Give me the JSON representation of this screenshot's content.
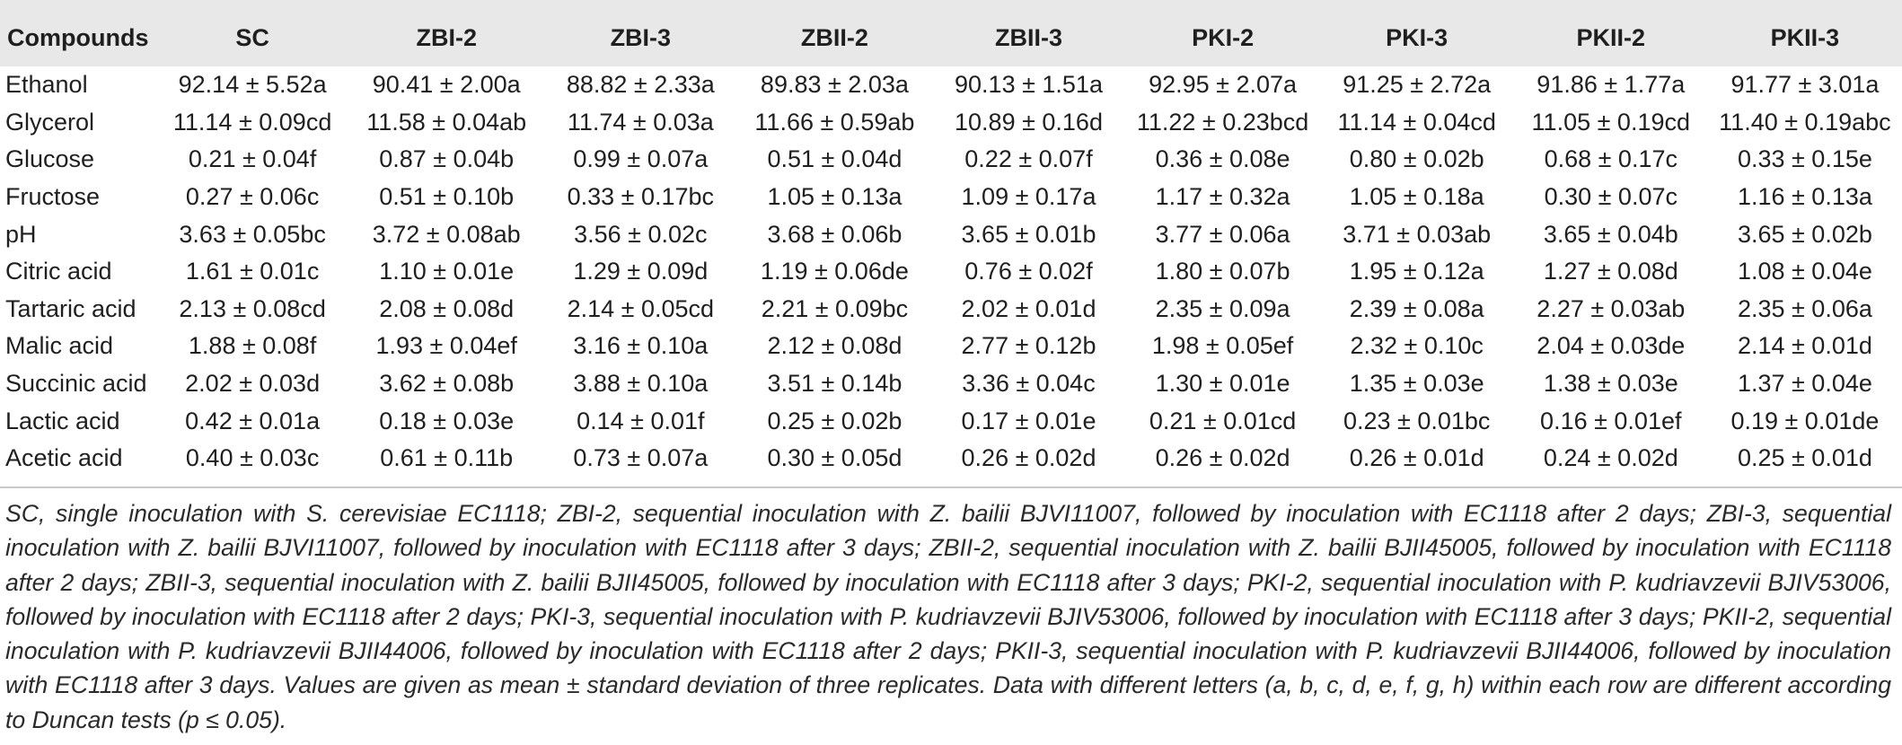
{
  "table": {
    "headers": [
      "Compounds",
      "SC",
      "ZBI-2",
      "ZBI-3",
      "ZBII-2",
      "ZBII-3",
      "PKI-2",
      "PKI-3",
      "PKII-2",
      "PKII-3"
    ],
    "rows": [
      {
        "name": "Ethanol",
        "cells": [
          "92.14 ± 5.52a",
          "90.41 ± 2.00a",
          "88.82 ± 2.33a",
          "89.83 ± 2.03a",
          "90.13 ± 1.51a",
          "92.95 ± 2.07a",
          "91.25 ± 2.72a",
          "91.86 ± 1.77a",
          "91.77 ± 3.01a"
        ]
      },
      {
        "name": "Glycerol",
        "cells": [
          "11.14 ± 0.09cd",
          "11.58 ± 0.04ab",
          "11.74 ± 0.03a",
          "11.66 ± 0.59ab",
          "10.89 ± 0.16d",
          "11.22 ± 0.23bcd",
          "11.14 ± 0.04cd",
          "11.05 ± 0.19cd",
          "11.40 ± 0.19abc"
        ]
      },
      {
        "name": "Glucose",
        "cells": [
          "0.21 ± 0.04f",
          "0.87 ± 0.04b",
          "0.99 ± 0.07a",
          "0.51 ± 0.04d",
          "0.22 ± 0.07f",
          "0.36 ± 0.08e",
          "0.80 ± 0.02b",
          "0.68 ± 0.17c",
          "0.33 ± 0.15e"
        ]
      },
      {
        "name": "Fructose",
        "cells": [
          "0.27 ± 0.06c",
          "0.51 ± 0.10b",
          "0.33 ± 0.17bc",
          "1.05 ± 0.13a",
          "1.09 ± 0.17a",
          "1.17 ± 0.32a",
          "1.05 ± 0.18a",
          "0.30 ± 0.07c",
          "1.16 ± 0.13a"
        ]
      },
      {
        "name": "pH",
        "cells": [
          "3.63 ± 0.05bc",
          "3.72 ± 0.08ab",
          "3.56 ± 0.02c",
          "3.68 ± 0.06b",
          "3.65 ± 0.01b",
          "3.77 ± 0.06a",
          "3.71 ± 0.03ab",
          "3.65 ± 0.04b",
          "3.65 ± 0.02b"
        ]
      },
      {
        "name": "Citric acid",
        "cells": [
          "1.61 ± 0.01c",
          "1.10 ± 0.01e",
          "1.29 ± 0.09d",
          "1.19 ± 0.06de",
          "0.76 ± 0.02f",
          "1.80 ± 0.07b",
          "1.95 ± 0.12a",
          "1.27 ± 0.08d",
          "1.08 ± 0.04e"
        ]
      },
      {
        "name": "Tartaric acid",
        "cells": [
          "2.13 ± 0.08cd",
          "2.08 ± 0.08d",
          "2.14 ± 0.05cd",
          "2.21 ± 0.09bc",
          "2.02 ± 0.01d",
          "2.35 ± 0.09a",
          "2.39 ± 0.08a",
          "2.27 ± 0.03ab",
          "2.35 ± 0.06a"
        ]
      },
      {
        "name": "Malic acid",
        "cells": [
          "1.88 ± 0.08f",
          "1.93 ± 0.04ef",
          "3.16 ± 0.10a",
          "2.12 ± 0.08d",
          "2.77 ± 0.12b",
          "1.98 ± 0.05ef",
          "2.32 ± 0.10c",
          "2.04 ± 0.03de",
          "2.14 ± 0.01d"
        ]
      },
      {
        "name": "Succinic acid",
        "cells": [
          "2.02 ± 0.03d",
          "3.62 ± 0.08b",
          "3.88 ± 0.10a",
          "3.51 ± 0.14b",
          "3.36 ± 0.04c",
          "1.30 ± 0.01e",
          "1.35 ± 0.03e",
          "1.38 ± 0.03e",
          "1.37 ± 0.04e"
        ]
      },
      {
        "name": "Lactic acid",
        "cells": [
          "0.42 ± 0.01a",
          "0.18 ± 0.03e",
          "0.14 ± 0.01f",
          "0.25 ± 0.02b",
          "0.17 ± 0.01e",
          "0.21 ± 0.01cd",
          "0.23 ± 0.01bc",
          "0.16 ± 0.01ef",
          "0.19 ± 0.01de"
        ]
      },
      {
        "name": "Acetic acid",
        "cells": [
          "0.40 ± 0.03c",
          "0.61 ± 0.11b",
          "0.73 ± 0.07a",
          "0.30 ± 0.05d",
          "0.26 ± 0.02d",
          "0.26 ± 0.02d",
          "0.26 ± 0.01d",
          "0.24 ± 0.02d",
          "0.25 ± 0.01d"
        ]
      }
    ]
  },
  "footnote": "SC, single inoculation with S. cerevisiae EC1118; ZBI-2, sequential inoculation with Z. bailii BJVI11007, followed by inoculation with EC1118 after 2 days; ZBI-3, sequential inoculation with Z. bailii BJVI11007, followed by inoculation with EC1118 after 3 days; ZBII-2, sequential inoculation with Z. bailii BJII45005, followed by inoculation with EC1118 after 2 days; ZBII-3, sequential inoculation with Z. bailii BJII45005, followed by inoculation with EC1118 after 3 days; PKI-2, sequential inoculation with P. kudriavzevii BJIV53006, followed by inoculation with EC1118 after 2 days; PKI-3, sequential inoculation with P. kudriavzevii BJIV53006, followed by inoculation with EC1118 after 3 days; PKII-2, sequential inoculation with P. kudriavzevii BJII44006, followed by inoculation with EC1118 after 2 days; PKII-3, sequential inoculation with P. kudriavzevii BJII44006, followed by inoculation with EC1118 after 3 days. Values are given as mean ± standard deviation of three replicates. Data with different letters (a, b, c, d, e, f, g, h) within each row are different according to Duncan tests (p ≤ 0.05)."
}
